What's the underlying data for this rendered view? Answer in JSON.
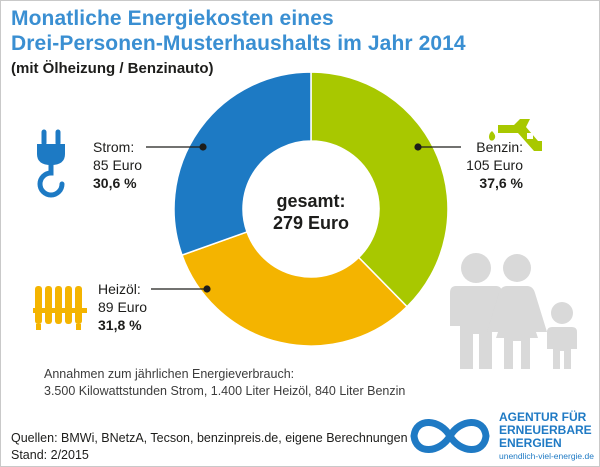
{
  "title_line1": "Monatliche Energiekosten eines",
  "title_line2": "Drei-Personen-Musterhaushalts im Jahr 2014",
  "subtitle": "(mit Ölheizung / Benzinauto)",
  "chart_data": {
    "type": "pie",
    "title": "Monatliche Energiekosten eines Drei-Personen-Musterhaushalts im Jahr 2014",
    "subtitle": "(mit Ölheizung / Benzinauto)",
    "center_label_line1": "gesamt:",
    "center_label_line2": "279 Euro",
    "slices": [
      {
        "name": "Benzin:",
        "value": 105,
        "value_label": "105 Euro",
        "percent_label": "37,6 %",
        "color": "#a8c800"
      },
      {
        "name": "Heizöl:",
        "value": 89,
        "value_label": "89 Euro",
        "percent_label": "31,8 %",
        "color": "#f4b400"
      },
      {
        "name": "Strom:",
        "value": 85,
        "value_label": "85 Euro",
        "percent_label": "30,6 %",
        "color": "#1d7ac4"
      }
    ]
  },
  "icons": {
    "strom": "plug-icon",
    "benzin": "fuel-nozzle-icon",
    "heizoel": "radiator-icon",
    "family": "family-icon"
  },
  "notes": {
    "assumption_line1": "Annahmen zum jährlichen Energieverbrauch:",
    "assumption_line2": "3.500 Kilowattstunden Strom, 1.400 Liter Heizöl, 840 Liter Benzin"
  },
  "footer": {
    "sources": "Quellen: BMWi, BNetzA, Tecson, benzinpreis.de, eigene Berechnungen",
    "stand": "Stand: 2/2015"
  },
  "logo": {
    "line1": "AGENTUR FÜR",
    "line2": "ERNEUERBARE",
    "line3": "ENERGIEN",
    "url": "unendlich-viel-energie.de"
  },
  "colors": {
    "title": "#3a8fd2",
    "benzin": "#a8c800",
    "heizoel": "#f4b400",
    "strom": "#1d7ac4",
    "family": "#d9d9d9",
    "logo": "#1f7ac4"
  }
}
